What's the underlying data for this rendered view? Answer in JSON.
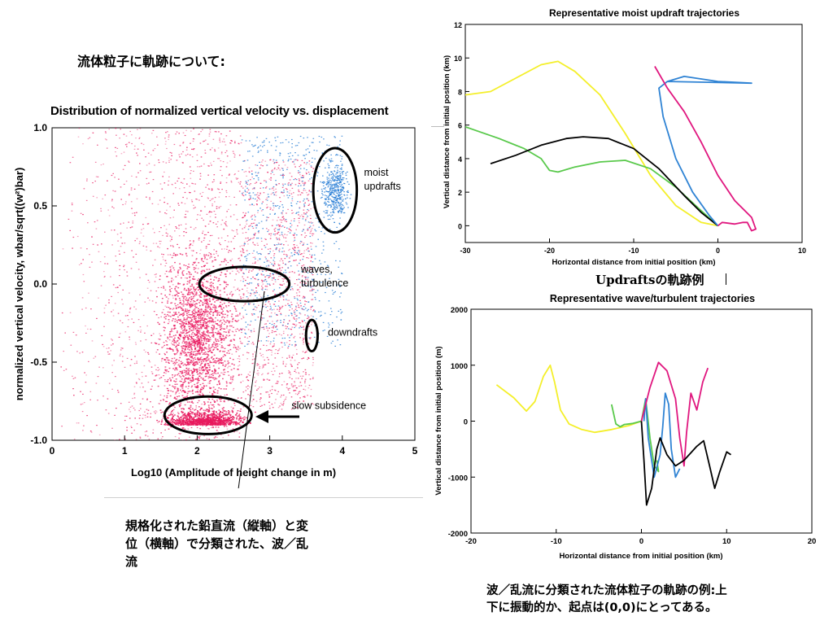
{
  "slide": {
    "heading": "流体粒子に軌跡について:",
    "caption_left": [
      "規格化された鉛直流（縦軸）と変",
      "位（横軸）で分類された、波／乱",
      "流"
    ],
    "caption_right": [
      "波／乱流に分類された流体粒子の軌跡の例:上",
      "下に振動的か、起点は(0,0)にとってある。"
    ],
    "caption_updrafts": "Updraftsの軌跡例"
  },
  "colors": {
    "scatter_red": "#e8175d",
    "scatter_blue": "#2a7fd6",
    "yellow": "#f4ef2a",
    "green": "#59c94b",
    "black": "#000000",
    "blue": "#2f83d4",
    "magenta": "#e0177f"
  },
  "chart_data": [
    {
      "id": "scatter",
      "type": "scatter",
      "title": "Distribution of normalized vertical velocity vs. displacement",
      "xlabel": "Log10 (Amplitude of height change in m)",
      "ylabel": "normalized vertical velocity, wbar/sqrt((w²)bar)",
      "xlim": [
        0,
        5
      ],
      "ylim": [
        -1.0,
        1.0
      ],
      "xticks": [
        "0",
        "1",
        "2",
        "3",
        "4",
        "5"
      ],
      "yticks": [
        "1.0",
        "0.5",
        "0.0",
        "-0.5",
        "-1.0"
      ],
      "series": [
        {
          "color_key": "scatter_red",
          "x_range": [
            0.1,
            3.6
          ],
          "density_peak_x": 2.0,
          "density_peak_y": -0.85
        },
        {
          "color_key": "scatter_blue",
          "x_range": [
            2.5,
            4.3
          ],
          "density_peak_x": 3.9,
          "density_peak_y": 0.6
        }
      ],
      "annotations": [
        {
          "text": "moist updrafts",
          "lines": [
            "moist",
            "updrafts"
          ],
          "ellipse": {
            "cx": 3.9,
            "cy": 0.6,
            "rx": 0.3,
            "ry": 0.27
          }
        },
        {
          "text": "waves, turbulence",
          "lines": [
            "waves,",
            "turbulence"
          ],
          "ellipse": {
            "cx": 2.65,
            "cy": 0.0,
            "rx": 0.62,
            "ry": 0.11
          }
        },
        {
          "text": "downdrafts",
          "lines": [
            "downdrafts"
          ],
          "ellipse": {
            "cx": 3.58,
            "cy": -0.33,
            "rx": 0.08,
            "ry": 0.1
          }
        },
        {
          "text": "slow subsidence",
          "lines": [
            "slow subsidence"
          ],
          "ellipse": {
            "cx": 2.15,
            "cy": -0.84,
            "rx": 0.6,
            "ry": 0.12
          }
        }
      ]
    },
    {
      "id": "updraft",
      "type": "line",
      "title": "Representative moist updraft trajectories",
      "xlabel": "Horizontal distance from initial position (km)",
      "ylabel": "Vertical distance from initial position (km)",
      "xlim": [
        -30,
        10
      ],
      "ylim": [
        -1,
        12
      ],
      "xticks": [
        -30,
        -20,
        -10,
        0,
        10
      ],
      "yticks": [
        0,
        2,
        4,
        6,
        8,
        10,
        12
      ],
      "series": [
        {
          "color_key": "yellow",
          "points": [
            [
              -30,
              7.8
            ],
            [
              -27,
              8.0
            ],
            [
              -24,
              8.8
            ],
            [
              -21,
              9.6
            ],
            [
              -19,
              9.8
            ],
            [
              -17,
              9.2
            ],
            [
              -14,
              7.8
            ],
            [
              -11,
              5.5
            ],
            [
              -8,
              3.0
            ],
            [
              -5,
              1.2
            ],
            [
              -2,
              0.2
            ],
            [
              0,
              0
            ]
          ]
        },
        {
          "color_key": "green",
          "points": [
            [
              -30,
              5.9
            ],
            [
              -26,
              5.2
            ],
            [
              -23,
              4.6
            ],
            [
              -21,
              4.0
            ],
            [
              -20,
              3.3
            ],
            [
              -19,
              3.2
            ],
            [
              -17,
              3.5
            ],
            [
              -14,
              3.8
            ],
            [
              -11,
              3.9
            ],
            [
              -8,
              3.4
            ],
            [
              -5,
              2.3
            ],
            [
              -2,
              0.9
            ],
            [
              0,
              0
            ]
          ]
        },
        {
          "color_key": "black",
          "points": [
            [
              -27,
              3.7
            ],
            [
              -24,
              4.2
            ],
            [
              -21,
              4.8
            ],
            [
              -18,
              5.2
            ],
            [
              -16,
              5.3
            ],
            [
              -13,
              5.2
            ],
            [
              -10,
              4.6
            ],
            [
              -7,
              3.4
            ],
            [
              -4,
              1.8
            ],
            [
              -2,
              0.8
            ],
            [
              0,
              0
            ]
          ]
        },
        {
          "color_key": "blue",
          "points": [
            [
              -6,
              8.6
            ],
            [
              -4,
              8.9
            ],
            [
              0,
              8.6
            ],
            [
              4,
              8.5
            ],
            [
              -6,
              8.6
            ],
            [
              -7,
              8.2
            ],
            [
              -6.5,
              6.5
            ],
            [
              -5,
              4.0
            ],
            [
              -3,
              2.0
            ],
            [
              -1,
              0.6
            ],
            [
              0,
              0
            ]
          ]
        },
        {
          "color_key": "magenta",
          "points": [
            [
              -7.5,
              9.5
            ],
            [
              -6,
              8.2
            ],
            [
              -4,
              6.8
            ],
            [
              -2,
              5.0
            ],
            [
              0,
              3.0
            ],
            [
              2,
              1.5
            ],
            [
              4,
              0.5
            ],
            [
              4.5,
              -0.2
            ],
            [
              4,
              -0.3
            ],
            [
              3.5,
              0.2
            ],
            [
              3,
              0.2
            ],
            [
              2,
              0.1
            ],
            [
              0.5,
              0.2
            ],
            [
              0,
              0
            ]
          ]
        }
      ]
    },
    {
      "id": "wave",
      "type": "line",
      "title": "Representative wave/turbulent trajectories",
      "xlabel": "Horizontal distance from initial position (km)",
      "ylabel": "Vertical distance from initial position (m)",
      "xlim": [
        -20,
        20
      ],
      "ylim": [
        -2000,
        2000
      ],
      "xticks": [
        -20,
        -10,
        0,
        10,
        20
      ],
      "yticks": [
        2000,
        1000,
        0,
        -1000,
        -2000
      ],
      "series": [
        {
          "color_key": "yellow",
          "points": [
            [
              -17,
              650
            ],
            [
              -15,
              420
            ],
            [
              -13.5,
              180
            ],
            [
              -12.5,
              350
            ],
            [
              -11.5,
              800
            ],
            [
              -10.7,
              1000
            ],
            [
              -10.2,
              700
            ],
            [
              -9.5,
              200
            ],
            [
              -8.5,
              -50
            ],
            [
              -7,
              -150
            ],
            [
              -5.5,
              -200
            ],
            [
              -3.5,
              -150
            ],
            [
              -1.5,
              -80
            ],
            [
              0,
              0
            ]
          ]
        },
        {
          "color_key": "green",
          "points": [
            [
              -3.5,
              300
            ],
            [
              -3,
              -50
            ],
            [
              -2.5,
              -100
            ],
            [
              -2,
              -60
            ],
            [
              -1,
              -40
            ],
            [
              0,
              0
            ],
            [
              0.5,
              400
            ],
            [
              1,
              -300
            ],
            [
              1.5,
              -800
            ],
            [
              2,
              -900
            ],
            [
              1.8,
              -700
            ]
          ]
        },
        {
          "color_key": "blue",
          "points": [
            [
              0.3,
              0
            ],
            [
              0.5,
              400
            ],
            [
              0.8,
              -300
            ],
            [
              1.5,
              -1000
            ],
            [
              2.2,
              -600
            ],
            [
              2.5,
              -100
            ],
            [
              2.8,
              500
            ],
            [
              3.2,
              300
            ],
            [
              3.5,
              -500
            ],
            [
              4,
              -1000
            ],
            [
              4.5,
              -850
            ]
          ]
        },
        {
          "color_key": "magenta",
          "points": [
            [
              0,
              0
            ],
            [
              1,
              600
            ],
            [
              2,
              1050
            ],
            [
              3,
              900
            ],
            [
              4,
              400
            ],
            [
              4.5,
              -300
            ],
            [
              5,
              -800
            ],
            [
              5.3,
              -200
            ],
            [
              5.8,
              500
            ],
            [
              6.5,
              200
            ],
            [
              7.2,
              700
            ],
            [
              7.8,
              950
            ]
          ]
        },
        {
          "color_key": "black",
          "points": [
            [
              0,
              0
            ],
            [
              0.3,
              -700
            ],
            [
              0.6,
              -1500
            ],
            [
              1.2,
              -1200
            ],
            [
              1.8,
              -500
            ],
            [
              2.2,
              -300
            ],
            [
              3,
              -600
            ],
            [
              4,
              -800
            ],
            [
              5,
              -700
            ],
            [
              6.5,
              -450
            ],
            [
              7.3,
              -350
            ],
            [
              8,
              -800
            ],
            [
              8.6,
              -1200
            ],
            [
              9.2,
              -900
            ],
            [
              10,
              -550
            ],
            [
              10.5,
              -600
            ]
          ]
        }
      ]
    }
  ]
}
